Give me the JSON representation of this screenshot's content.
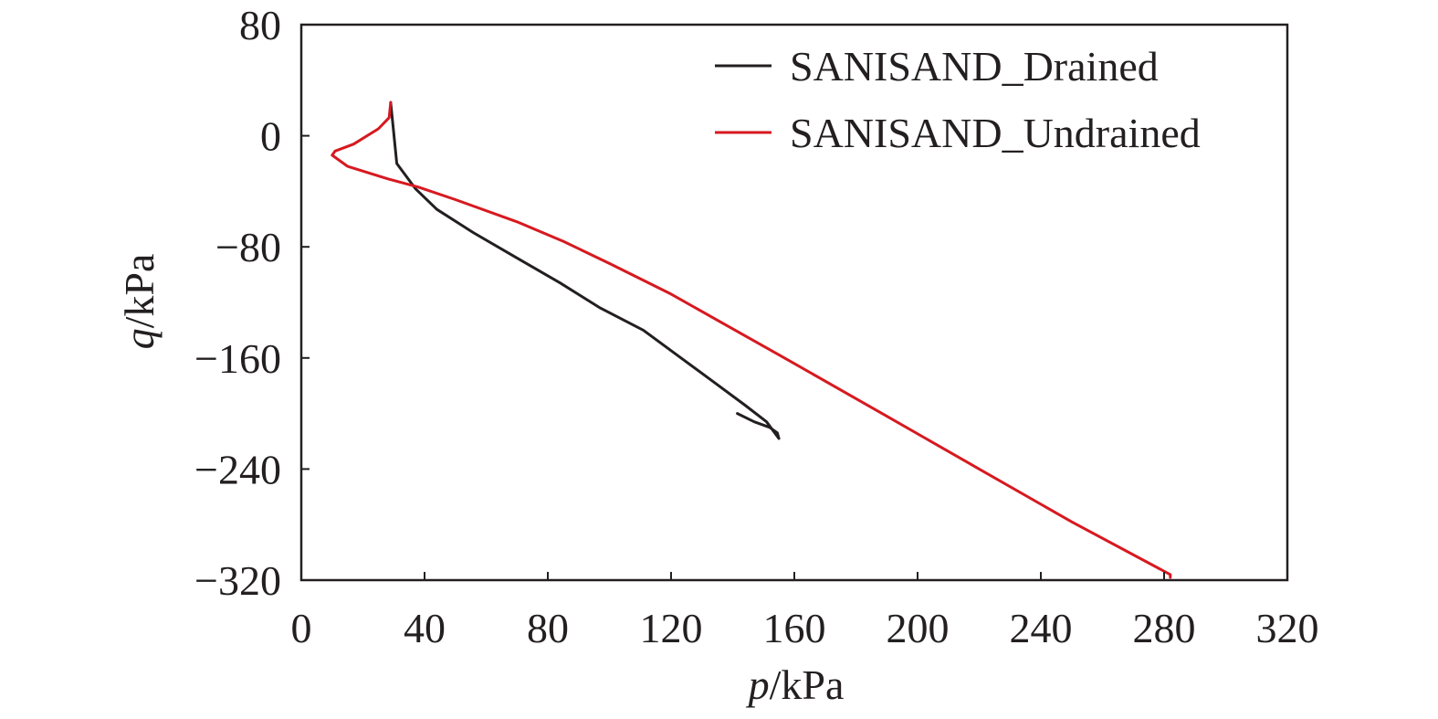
{
  "chart_data": {
    "type": "line",
    "xlabel": {
      "italic": "p",
      "rest": "/kPa"
    },
    "ylabel": {
      "italic": "q",
      "rest": "/kPa"
    },
    "xlim": [
      0,
      320
    ],
    "ylim": [
      -320,
      80
    ],
    "xticks": [
      0,
      40,
      80,
      120,
      160,
      200,
      240,
      280,
      320
    ],
    "yticks": [
      80,
      0,
      -80,
      -160,
      -240,
      -320
    ],
    "xtick_labels": [
      "0",
      "40",
      "80",
      "120",
      "160",
      "200",
      "240",
      "280",
      "320"
    ],
    "ytick_labels": [
      "80",
      "0",
      "−80",
      "−160",
      "−240",
      "−320"
    ],
    "grid": false,
    "legend_position": "top-right",
    "series": [
      {
        "name": "SANISAND_Drained",
        "color": "#231f20",
        "x": [
          141.5,
          147,
          152,
          154.5,
          155,
          151,
          144,
          133,
          122,
          111,
          97,
          84,
          70,
          56,
          44,
          37,
          31,
          29
        ],
        "y": [
          -200,
          -206,
          -210,
          -214,
          -218,
          -206,
          -194,
          -176,
          -158,
          -140,
          -124,
          -106,
          -88,
          -70,
          -53,
          -38,
          -20,
          24
        ]
      },
      {
        "name": "SANISAND_Undrained",
        "color": "#d71920",
        "x": [
          282,
          282,
          250,
          220,
          190,
          160,
          140,
          120,
          100,
          85,
          70,
          50,
          38,
          28,
          15,
          10,
          11,
          17,
          25,
          28.5,
          29
        ],
        "y": [
          -318,
          -316,
          -278,
          -240,
          -202,
          -164,
          -139,
          -114,
          -92,
          -76,
          -62,
          -46,
          -37,
          -31,
          -22,
          -14,
          -11,
          -6,
          5,
          13,
          24
        ]
      }
    ]
  }
}
